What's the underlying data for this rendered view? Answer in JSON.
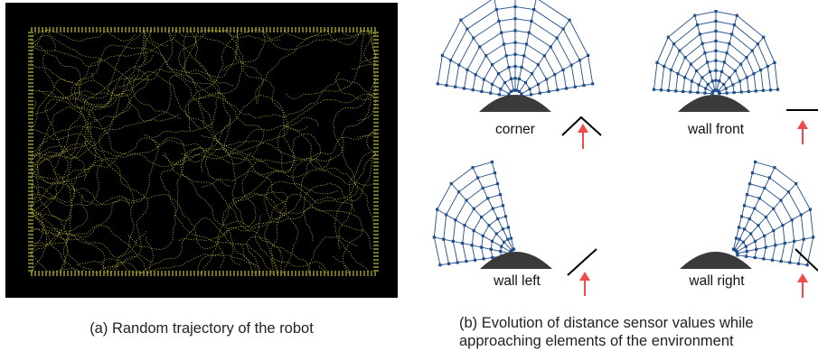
{
  "figure_a": {
    "caption": "(a) Random trajectory of the robot",
    "background_color": "#000000",
    "trajectory_color": "#e8e24a"
  },
  "figure_b": {
    "caption_line1": "(b) Evolution of distance sensor values while",
    "caption_line2": "approaching elements of the environment",
    "sensor_color": "#1f4e8c",
    "robot_color": "#3a3a3a",
    "arrow_color": "#f04a4a",
    "panels": [
      {
        "id": "corner",
        "label": "corner"
      },
      {
        "id": "wall-front",
        "label": "wall front"
      },
      {
        "id": "wall-left",
        "label": "wall left"
      },
      {
        "id": "wall-right",
        "label": "wall right"
      }
    ]
  }
}
